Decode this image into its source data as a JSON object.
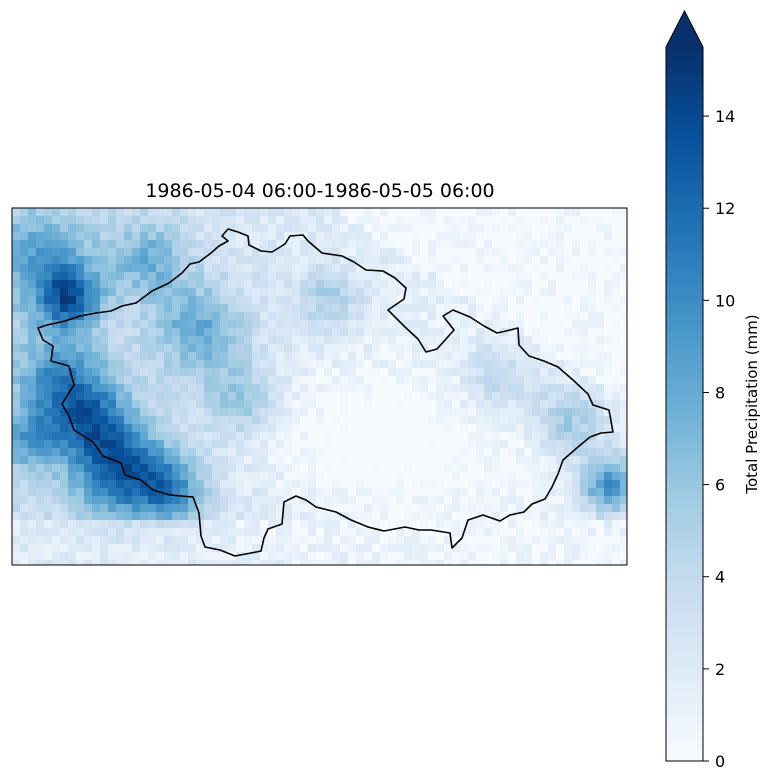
{
  "map": {
    "title": "1986-05-04 06:00-1986-05-05 06:00",
    "variable": "Total Precipitation",
    "region": "Czech Republic",
    "colormap": "Blues",
    "colors": {
      "low": "#f7fbff",
      "mid": "#6baed6",
      "high": "#08306b",
      "border": "#000000"
    }
  },
  "colorbar": {
    "label": "Total Precipitation (mm)",
    "range": [
      0,
      15.5
    ],
    "extend": "max",
    "ticks": [
      {
        "value": 0,
        "label": "0"
      },
      {
        "value": 2,
        "label": "2"
      },
      {
        "value": 4,
        "label": "4"
      },
      {
        "value": 6,
        "label": "6"
      },
      {
        "value": 8,
        "label": "8"
      },
      {
        "value": 10,
        "label": "10"
      },
      {
        "value": 12,
        "label": "12"
      },
      {
        "value": 14,
        "label": "14"
      }
    ]
  }
}
